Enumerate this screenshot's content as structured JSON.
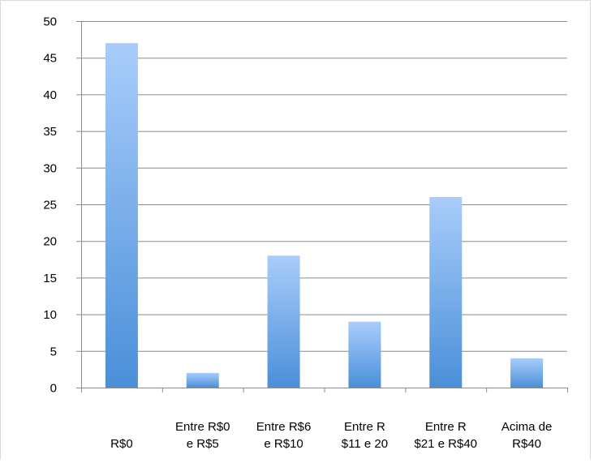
{
  "chart_data": {
    "type": "bar",
    "title": "",
    "xlabel": "",
    "ylabel": "",
    "categories": [
      [
        "R$0"
      ],
      [
        "Entre R$0",
        "e R$5"
      ],
      [
        "Entre R$6",
        "e R$10"
      ],
      [
        "Entre R",
        "$11 e 20"
      ],
      [
        "Entre R",
        "$21 e R$40"
      ],
      [
        "Acima de",
        "R$40"
      ]
    ],
    "values": [
      47,
      2,
      18,
      9,
      26,
      4
    ],
    "ylim": [
      0,
      50
    ],
    "yticks": [
      0,
      5,
      10,
      15,
      20,
      25,
      30,
      35,
      40,
      45,
      50
    ],
    "grid": true,
    "legend": "none",
    "colors": {
      "bar_top": "#a9cdfb",
      "bar_bottom": "#4a8fd9",
      "grid": "#8c8c8c",
      "axis": "#8c8c8c"
    }
  }
}
